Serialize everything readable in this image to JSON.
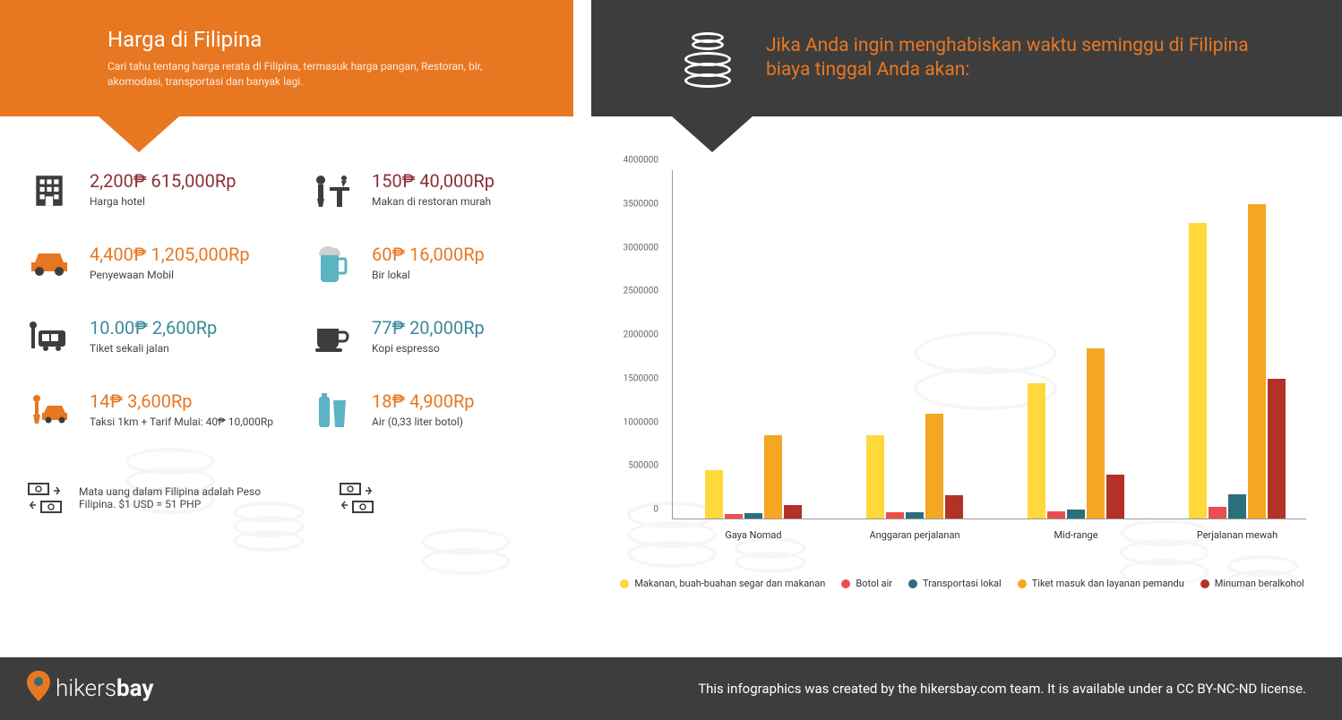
{
  "header": {
    "title": "Harga di Filipina",
    "subtitle": "Cari tahu tentang harga rerata di Filipina, termasuk harga pangan, Restoran, bir, akomodasi, transportasi dan banyak lagi.",
    "right_title": "Jika Anda ingin menghabiskan waktu seminggu di Filipina biaya tinggal Anda akan:"
  },
  "colors": {
    "orange": "#e87722",
    "dark": "#3d3d3d",
    "bordo": "#8b2f33",
    "teal": "#3a8a99",
    "food": "#ffd83b",
    "water": "#e94f4f",
    "transport": "#2b6f7d",
    "tickets": "#f5a623",
    "alcohol": "#b33228",
    "icon_grey": "#3d3d3d",
    "icon_orange": "#e87722",
    "icon_teal": "#5ab4c4"
  },
  "prices": [
    {
      "amount": "2,200₱ 615,000Rp",
      "label": "Harga hotel",
      "color": "#8b2f33",
      "icon": "hotel"
    },
    {
      "amount": "4,400₱ 1,205,000Rp",
      "label": "Penyewaan Mobil",
      "color": "#e87722",
      "icon": "car"
    },
    {
      "amount": "10.00₱ 2,600Rp",
      "label": "Tiket sekali jalan",
      "color": "#3a8a99",
      "icon": "bus"
    },
    {
      "amount": "14₱ 3,600Rp",
      "label": "Taksi 1km + Tarif Mulai: 40₱ 10,000Rp",
      "color": "#e87722",
      "icon": "taxi"
    }
  ],
  "prices2": [
    {
      "amount": "150₱ 40,000Rp",
      "label": "Makan di restoran murah",
      "color": "#8b2f33",
      "icon": "restaurant"
    },
    {
      "amount": "60₱ 16,000Rp",
      "label": "Bir lokal",
      "color": "#e87722",
      "icon": "beer"
    },
    {
      "amount": "77₱ 20,000Rp",
      "label": "Kopi espresso",
      "color": "#3a8a99",
      "icon": "coffee"
    },
    {
      "amount": "18₱ 4,900Rp",
      "label": "Air (0,33 liter botol)",
      "color": "#e87722",
      "icon": "water"
    }
  ],
  "currency_note": "Mata uang dalam Filipina adalah Peso Filipina. $1 USD = 51 PHP",
  "chart": {
    "ymax": 4000000,
    "ytick_step": 500000,
    "yticks": [
      "0",
      "500000",
      "1000000",
      "1500000",
      "2000000",
      "2500000",
      "3000000",
      "3500000",
      "4000000"
    ],
    "categories": [
      "Gaya Nomad",
      "Anggaran perjalanan",
      "Mid-range",
      "Perjalanan mewah"
    ],
    "series": [
      {
        "name": "Makanan, buah-buahan segar dan makanan",
        "color": "#ffd83b",
        "values": [
          550000,
          950000,
          1550000,
          3380000
        ]
      },
      {
        "name": "Botol air",
        "color": "#e94f4f",
        "values": [
          50000,
          70000,
          80000,
          130000
        ]
      },
      {
        "name": "Transportasi lokal",
        "color": "#2b6f7d",
        "values": [
          60000,
          70000,
          100000,
          280000
        ]
      },
      {
        "name": "Tiket masuk dan layanan pemandu",
        "color": "#f5a623",
        "values": [
          950000,
          1200000,
          1950000,
          3600000
        ]
      },
      {
        "name": "Minuman beralkohol",
        "color": "#b33228",
        "values": [
          150000,
          270000,
          500000,
          1600000
        ]
      }
    ]
  },
  "footer": {
    "logo_pre": "hikers",
    "logo_bold": "bay",
    "text": "This infographics was created by the hikersbay.com team. It is available under a CC BY-NC-ND license."
  }
}
